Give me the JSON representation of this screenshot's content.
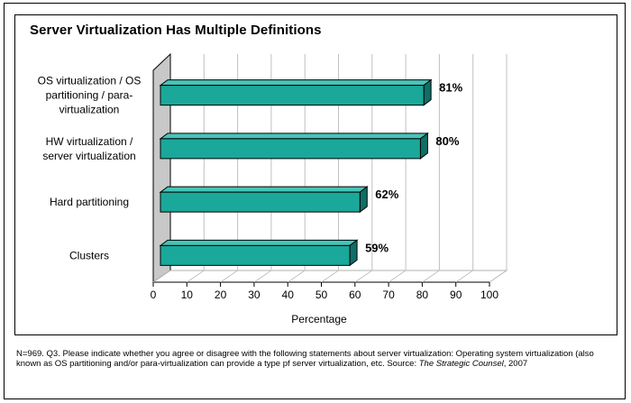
{
  "chart_data": {
    "type": "bar",
    "orientation": "horizontal",
    "style": "3d",
    "title": "Server Virtualization Has Multiple Definitions",
    "xlabel": "Percentage",
    "ylabel": "",
    "xlim": [
      0,
      100
    ],
    "x_ticks": [
      "0",
      "10",
      "20",
      "30",
      "40",
      "50",
      "60",
      "70",
      "80",
      "90",
      "100"
    ],
    "grid": true,
    "categories": [
      [
        "OS virtualization / OS",
        "partitioning / para-",
        "virtualization"
      ],
      [
        "HW virtualization /",
        "server virtualization"
      ],
      [
        "Hard partitioning"
      ],
      [
        "Clusters"
      ]
    ],
    "values": [
      81,
      80,
      62,
      59
    ],
    "data_labels": [
      "81%",
      "80%",
      "62%",
      "59%"
    ],
    "bar_color": "#1aa89a"
  },
  "footnote": {
    "text": "N=969. Q3.  Please indicate whether you agree or disagree with the following statements about server virtualization: Operating system virtualization (also known as OS partitioning and/or para-virtualization can provide a type pf server virtualization, etc.  Source: ",
    "source": "The Strategic Counsel",
    "year": ", 2007"
  }
}
